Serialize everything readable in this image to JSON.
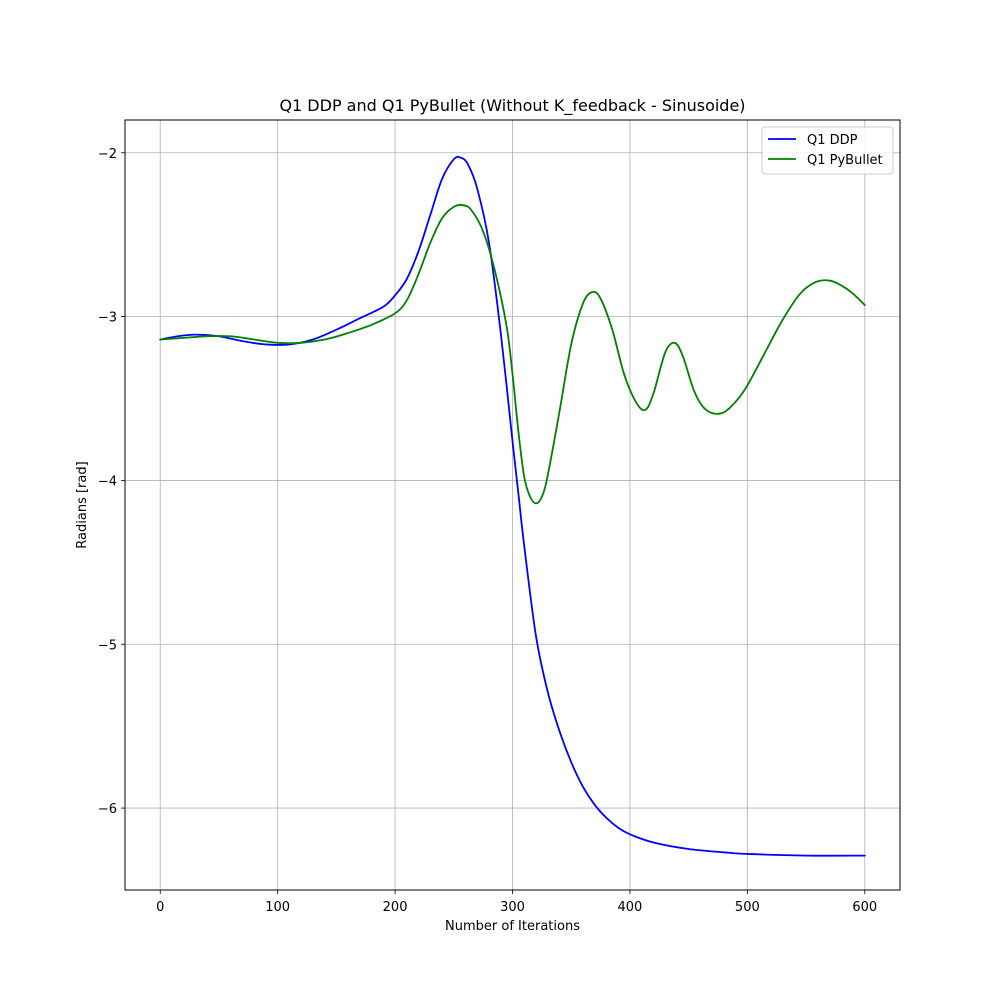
{
  "chart_data": {
    "type": "line",
    "title": "Q1 DDP and Q1 PyBullet (Without K_feedback - Sinusoide)",
    "xlabel": "Number of Iterations",
    "ylabel": "Radians [rad]",
    "xlim": [
      -30,
      630
    ],
    "ylim": [
      -6.5,
      -1.8
    ],
    "xticks": [
      0,
      100,
      200,
      300,
      400,
      500,
      600
    ],
    "yticks": [
      -2,
      -3,
      -4,
      -5,
      -6
    ],
    "xtick_labels": [
      "0",
      "100",
      "200",
      "300",
      "400",
      "500",
      "600"
    ],
    "ytick_labels": [
      "−2",
      "−3",
      "−4",
      "−5",
      "−6"
    ],
    "grid": true,
    "legend_position": "top-right",
    "series": [
      {
        "name": "Q1 DDP",
        "color": "#0000ff",
        "x": [
          0,
          15,
          30,
          50,
          70,
          90,
          110,
          130,
          150,
          170,
          190,
          200,
          210,
          220,
          230,
          240,
          250,
          256,
          262,
          270,
          280,
          290,
          300,
          305,
          310,
          320,
          330,
          340,
          350,
          360,
          370,
          380,
          390,
          400,
          420,
          450,
          480,
          500,
          550,
          600
        ],
        "y": [
          -3.14,
          -3.12,
          -3.11,
          -3.12,
          -3.15,
          -3.17,
          -3.17,
          -3.14,
          -3.08,
          -3.01,
          -2.94,
          -2.87,
          -2.77,
          -2.6,
          -2.38,
          -2.16,
          -2.04,
          -2.03,
          -2.07,
          -2.22,
          -2.55,
          -3.1,
          -3.76,
          -4.08,
          -4.4,
          -4.95,
          -5.29,
          -5.53,
          -5.72,
          -5.87,
          -5.98,
          -6.06,
          -6.12,
          -6.16,
          -6.21,
          -6.25,
          -6.27,
          -6.28,
          -6.29,
          -6.29
        ]
      },
      {
        "name": "Q1 PyBullet",
        "color": "#008000",
        "x": [
          0,
          20,
          40,
          60,
          80,
          100,
          120,
          140,
          160,
          180,
          200,
          210,
          220,
          230,
          240,
          250,
          258,
          265,
          275,
          285,
          295,
          300,
          305,
          310,
          315,
          320,
          325,
          330,
          340,
          350,
          360,
          368,
          375,
          385,
          395,
          405,
          413,
          420,
          430,
          438,
          445,
          455,
          465,
          478,
          490,
          500,
          515,
          530,
          545,
          558,
          570,
          580,
          590,
          600
        ],
        "y": [
          -3.14,
          -3.13,
          -3.12,
          -3.12,
          -3.14,
          -3.16,
          -3.16,
          -3.14,
          -3.1,
          -3.05,
          -2.98,
          -2.9,
          -2.74,
          -2.55,
          -2.4,
          -2.33,
          -2.32,
          -2.35,
          -2.48,
          -2.72,
          -3.06,
          -3.35,
          -3.7,
          -3.98,
          -4.1,
          -4.14,
          -4.1,
          -3.97,
          -3.58,
          -3.17,
          -2.92,
          -2.85,
          -2.89,
          -3.08,
          -3.35,
          -3.52,
          -3.57,
          -3.47,
          -3.22,
          -3.16,
          -3.24,
          -3.46,
          -3.57,
          -3.59,
          -3.52,
          -3.42,
          -3.22,
          -3.02,
          -2.86,
          -2.79,
          -2.78,
          -2.81,
          -2.86,
          -2.93
        ]
      }
    ]
  }
}
